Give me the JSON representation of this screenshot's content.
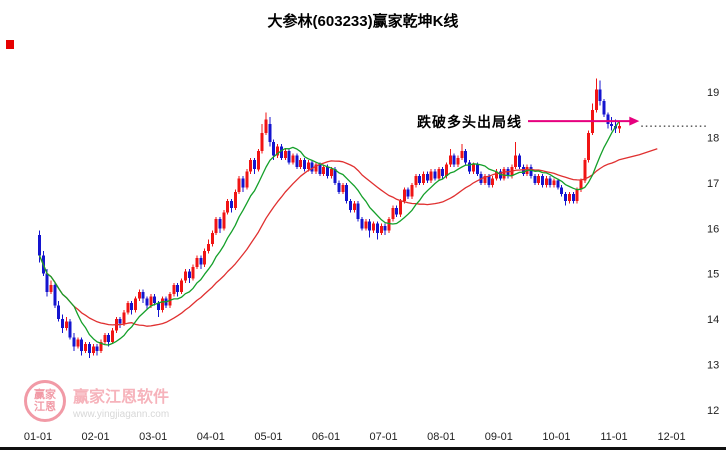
{
  "chart_data": {
    "type": "candlestick",
    "title": "大参林(603233)赢家乾坤K线",
    "y_ticks": [
      19,
      18,
      17,
      16,
      15,
      14,
      13,
      12
    ],
    "x_ticks": [
      "01-01",
      "02-01",
      "03-01",
      "04-01",
      "05-01",
      "06-01",
      "07-01",
      "08-01",
      "09-01",
      "10-01",
      "11-01",
      "12-01"
    ],
    "ylim": [
      11.8,
      19.95
    ],
    "grid": false,
    "legend": "none",
    "annotation": {
      "text": "跌破多头出局线",
      "price": 18.36
    },
    "last_price": 18.25,
    "ma_windows": {
      "fast": 10,
      "slow": 25
    },
    "colors": {
      "up": "#f01414",
      "down": "#1414cf",
      "ma_fast": "#15a02a",
      "ma_slow": "#e03030",
      "annotation": "#e6007e",
      "dotted": "#000000",
      "axis_text": "#222222"
    },
    "candles": [
      [
        15.85,
        15.95,
        15.25,
        15.4
      ],
      [
        15.4,
        15.5,
        14.95,
        15.0
      ],
      [
        15.0,
        15.1,
        14.5,
        14.6
      ],
      [
        14.6,
        14.85,
        14.55,
        14.75
      ],
      [
        14.75,
        14.8,
        14.25,
        14.3
      ],
      [
        14.3,
        14.4,
        13.95,
        14.0
      ],
      [
        14.0,
        14.1,
        13.7,
        13.8
      ],
      [
        13.8,
        14.05,
        13.75,
        13.95
      ],
      [
        13.95,
        14.0,
        13.55,
        13.6
      ],
      [
        13.6,
        13.7,
        13.3,
        13.4
      ],
      [
        13.4,
        13.6,
        13.35,
        13.55
      ],
      [
        13.55,
        13.6,
        13.2,
        13.3
      ],
      [
        13.3,
        13.5,
        13.25,
        13.45
      ],
      [
        13.45,
        13.5,
        13.15,
        13.25
      ],
      [
        13.25,
        13.45,
        13.2,
        13.4
      ],
      [
        13.4,
        13.45,
        13.2,
        13.3
      ],
      [
        13.3,
        13.55,
        13.25,
        13.5
      ],
      [
        13.5,
        13.7,
        13.45,
        13.65
      ],
      [
        13.65,
        13.7,
        13.4,
        13.5
      ],
      [
        13.5,
        13.8,
        13.45,
        13.75
      ],
      [
        13.75,
        14.05,
        13.7,
        14.0
      ],
      [
        14.0,
        14.05,
        13.8,
        13.9
      ],
      [
        13.9,
        14.2,
        13.85,
        14.15
      ],
      [
        14.15,
        14.4,
        14.1,
        14.35
      ],
      [
        14.35,
        14.4,
        14.1,
        14.2
      ],
      [
        14.2,
        14.5,
        14.15,
        14.45
      ],
      [
        14.45,
        14.65,
        14.4,
        14.6
      ],
      [
        14.6,
        14.65,
        14.35,
        14.45
      ],
      [
        14.45,
        14.5,
        14.2,
        14.3
      ],
      [
        14.3,
        14.55,
        14.25,
        14.5
      ],
      [
        14.5,
        14.55,
        14.3,
        14.35
      ],
      [
        14.35,
        14.4,
        14.05,
        14.2
      ],
      [
        14.2,
        14.5,
        14.15,
        14.45
      ],
      [
        14.45,
        14.5,
        14.25,
        14.3
      ],
      [
        14.3,
        14.6,
        14.25,
        14.55
      ],
      [
        14.55,
        14.8,
        14.5,
        14.75
      ],
      [
        14.75,
        14.8,
        14.5,
        14.6
      ],
      [
        14.6,
        14.9,
        14.55,
        14.85
      ],
      [
        14.85,
        15.1,
        14.8,
        15.05
      ],
      [
        15.05,
        15.1,
        14.8,
        14.9
      ],
      [
        14.9,
        15.2,
        14.85,
        15.15
      ],
      [
        15.15,
        15.4,
        15.1,
        15.35
      ],
      [
        15.35,
        15.4,
        15.1,
        15.2
      ],
      [
        15.2,
        15.55,
        15.15,
        15.5
      ],
      [
        15.5,
        15.75,
        15.45,
        15.65
      ],
      [
        15.65,
        15.95,
        15.6,
        15.9
      ],
      [
        15.9,
        16.25,
        15.85,
        16.2
      ],
      [
        16.2,
        16.25,
        15.9,
        16.0
      ],
      [
        16.0,
        16.4,
        15.95,
        16.35
      ],
      [
        16.35,
        16.65,
        16.3,
        16.6
      ],
      [
        16.6,
        16.65,
        16.35,
        16.45
      ],
      [
        16.45,
        16.85,
        16.4,
        16.8
      ],
      [
        16.8,
        17.15,
        16.75,
        17.1
      ],
      [
        17.1,
        17.15,
        16.8,
        16.9
      ],
      [
        16.9,
        17.3,
        16.85,
        17.25
      ],
      [
        17.25,
        17.55,
        17.2,
        17.5
      ],
      [
        17.5,
        17.55,
        17.2,
        17.3
      ],
      [
        17.3,
        17.75,
        17.25,
        17.7
      ],
      [
        17.7,
        18.3,
        17.65,
        18.1
      ],
      [
        18.1,
        18.55,
        18.05,
        18.4
      ],
      [
        18.3,
        18.45,
        17.8,
        17.9
      ],
      [
        17.9,
        17.95,
        17.5,
        17.6
      ],
      [
        17.6,
        17.85,
        17.55,
        17.8
      ],
      [
        17.8,
        17.85,
        17.5,
        17.55
      ],
      [
        17.55,
        17.75,
        17.5,
        17.7
      ],
      [
        17.7,
        17.75,
        17.4,
        17.45
      ],
      [
        17.45,
        17.65,
        17.4,
        17.6
      ],
      [
        17.6,
        17.65,
        17.3,
        17.35
      ],
      [
        17.35,
        17.55,
        17.3,
        17.5
      ],
      [
        17.5,
        17.55,
        17.25,
        17.3
      ],
      [
        17.3,
        17.5,
        17.25,
        17.45
      ],
      [
        17.45,
        17.5,
        17.2,
        17.25
      ],
      [
        17.25,
        17.45,
        17.2,
        17.4
      ],
      [
        17.4,
        17.45,
        17.15,
        17.2
      ],
      [
        17.2,
        17.4,
        17.15,
        17.35
      ],
      [
        17.35,
        17.4,
        17.1,
        17.15
      ],
      [
        17.15,
        17.35,
        17.1,
        17.3
      ],
      [
        17.3,
        17.35,
        16.95,
        17.0
      ],
      [
        17.0,
        17.05,
        16.75,
        16.8
      ],
      [
        16.8,
        17.0,
        16.75,
        16.95
      ],
      [
        16.95,
        17.0,
        16.55,
        16.6
      ],
      [
        16.6,
        16.65,
        16.35,
        16.4
      ],
      [
        16.4,
        16.6,
        16.35,
        16.55
      ],
      [
        16.55,
        16.6,
        16.15,
        16.2
      ],
      [
        16.2,
        16.25,
        15.95,
        16.0
      ],
      [
        16.0,
        16.2,
        15.95,
        16.15
      ],
      [
        16.15,
        16.2,
        15.8,
        15.95
      ],
      [
        15.95,
        16.15,
        15.9,
        16.1
      ],
      [
        16.1,
        16.15,
        15.75,
        15.9
      ],
      [
        15.9,
        16.1,
        15.85,
        16.05
      ],
      [
        16.05,
        16.1,
        15.85,
        15.95
      ],
      [
        15.95,
        16.25,
        15.9,
        16.2
      ],
      [
        16.2,
        16.5,
        16.15,
        16.45
      ],
      [
        16.45,
        16.5,
        16.25,
        16.3
      ],
      [
        16.3,
        16.65,
        16.25,
        16.6
      ],
      [
        16.6,
        16.9,
        16.55,
        16.85
      ],
      [
        16.85,
        16.9,
        16.65,
        16.7
      ],
      [
        16.7,
        17.0,
        16.65,
        16.95
      ],
      [
        16.95,
        17.2,
        16.9,
        17.15
      ],
      [
        17.15,
        17.2,
        16.95,
        17.0
      ],
      [
        17.0,
        17.25,
        16.95,
        17.2
      ],
      [
        17.2,
        17.25,
        17.0,
        17.05
      ],
      [
        17.05,
        17.3,
        17.0,
        17.25
      ],
      [
        17.25,
        17.3,
        17.05,
        17.1
      ],
      [
        17.1,
        17.35,
        17.05,
        17.3
      ],
      [
        17.3,
        17.35,
        17.1,
        17.15
      ],
      [
        17.15,
        17.45,
        17.1,
        17.4
      ],
      [
        17.4,
        17.75,
        17.35,
        17.6
      ],
      [
        17.6,
        17.65,
        17.35,
        17.4
      ],
      [
        17.4,
        17.6,
        17.35,
        17.55
      ],
      [
        17.55,
        17.85,
        17.5,
        17.7
      ],
      [
        17.7,
        17.75,
        17.4,
        17.45
      ],
      [
        17.45,
        17.5,
        17.2,
        17.25
      ],
      [
        17.25,
        17.45,
        17.2,
        17.4
      ],
      [
        17.4,
        17.45,
        17.15,
        17.2
      ],
      [
        17.2,
        17.25,
        16.95,
        17.0
      ],
      [
        17.0,
        17.2,
        16.95,
        17.15
      ],
      [
        17.15,
        17.2,
        16.9,
        16.95
      ],
      [
        16.95,
        17.15,
        16.9,
        17.1
      ],
      [
        17.1,
        17.3,
        17.05,
        17.25
      ],
      [
        17.25,
        17.3,
        17.05,
        17.1
      ],
      [
        17.1,
        17.35,
        17.05,
        17.3
      ],
      [
        17.3,
        17.35,
        17.1,
        17.15
      ],
      [
        17.15,
        17.4,
        17.1,
        17.35
      ],
      [
        17.35,
        17.9,
        17.3,
        17.6
      ],
      [
        17.6,
        17.65,
        17.3,
        17.35
      ],
      [
        17.35,
        17.4,
        17.15,
        17.2
      ],
      [
        17.2,
        17.4,
        17.15,
        17.35
      ],
      [
        17.35,
        17.4,
        17.1,
        17.15
      ],
      [
        17.15,
        17.2,
        16.95,
        17.0
      ],
      [
        17.0,
        17.2,
        16.95,
        17.15
      ],
      [
        17.15,
        17.2,
        16.9,
        16.95
      ],
      [
        16.95,
        17.15,
        16.9,
        17.1
      ],
      [
        17.1,
        17.15,
        16.9,
        16.95
      ],
      [
        16.95,
        17.1,
        16.9,
        17.05
      ],
      [
        17.05,
        17.1,
        16.85,
        16.9
      ],
      [
        16.9,
        16.95,
        16.7,
        16.75
      ],
      [
        16.75,
        16.8,
        16.5,
        16.6
      ],
      [
        16.6,
        16.8,
        16.55,
        16.75
      ],
      [
        16.75,
        16.8,
        16.55,
        16.6
      ],
      [
        16.6,
        16.9,
        16.55,
        16.85
      ],
      [
        16.85,
        17.1,
        16.8,
        17.05
      ],
      [
        17.05,
        17.55,
        17.0,
        17.5
      ],
      [
        17.5,
        18.15,
        17.45,
        18.1
      ],
      [
        18.1,
        18.75,
        18.05,
        18.6
      ],
      [
        18.6,
        19.3,
        18.55,
        19.05
      ],
      [
        19.05,
        19.25,
        18.7,
        18.8
      ],
      [
        18.8,
        18.85,
        18.45,
        18.5
      ],
      [
        18.5,
        18.55,
        18.2,
        18.3
      ],
      [
        18.3,
        18.45,
        18.15,
        18.25
      ],
      [
        18.25,
        18.4,
        18.1,
        18.2
      ],
      [
        18.2,
        18.35,
        18.1,
        18.25
      ]
    ]
  },
  "watermark": {
    "name": "赢家江恩软件",
    "url": "www.yingjiagann.com",
    "logo_text": "赢家江恩"
  }
}
